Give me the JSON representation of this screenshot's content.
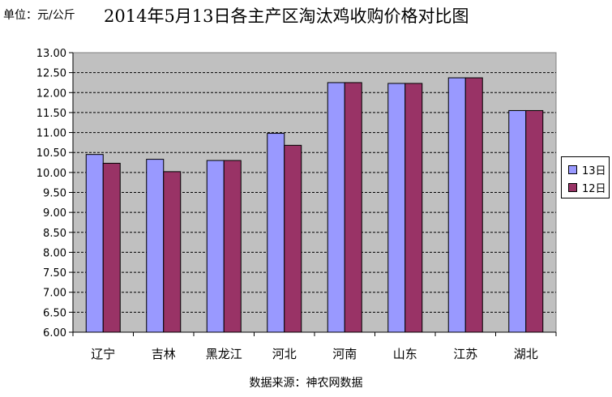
{
  "unit_label": "单位：元/公斤",
  "title": "2014年5月13日各主产区淘汰鸡收购价格对比图",
  "source": "数据来源：神农网数据",
  "colors": {
    "series_13": "#9999ff",
    "series_12": "#993366",
    "plot_bg": "#c0c0c0"
  },
  "chart_data": {
    "type": "bar",
    "title": "2014年5月13日各主产区淘汰鸡收购价格对比图",
    "categories": [
      "辽宁",
      "吉林",
      "黑龙江",
      "河北",
      "河南",
      "山东",
      "江苏",
      "湖北"
    ],
    "series": [
      {
        "name": "13日",
        "values": [
          10.45,
          10.33,
          10.3,
          10.98,
          12.25,
          12.23,
          12.37,
          11.55
        ]
      },
      {
        "name": "12日",
        "values": [
          10.23,
          10.02,
          10.3,
          10.68,
          12.25,
          12.23,
          12.37,
          11.55
        ]
      }
    ],
    "ylim": [
      6.0,
      13.0
    ],
    "yticks": [
      "6.00",
      "6.50",
      "7.00",
      "7.50",
      "8.00",
      "8.50",
      "9.00",
      "9.50",
      "10.00",
      "10.50",
      "11.00",
      "11.50",
      "12.00",
      "12.50",
      "13.00"
    ],
    "grid": true,
    "legend": "right"
  }
}
